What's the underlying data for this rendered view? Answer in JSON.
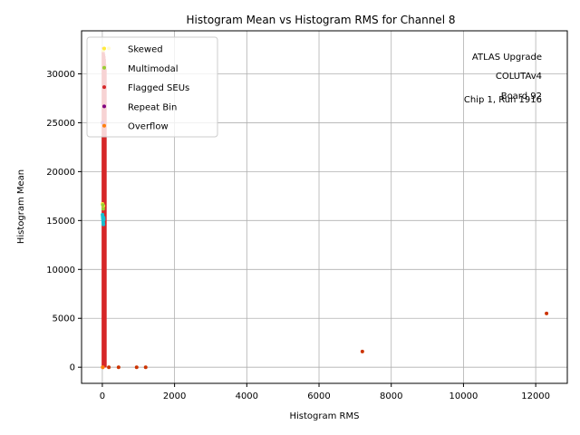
{
  "chart_data": {
    "type": "scatter",
    "title": "Histogram Mean vs Histogram RMS for Channel 8",
    "xlabel": "Histogram RMS",
    "ylabel": "Histogram Mean",
    "xlim": [
      -575,
      12875
    ],
    "ylim": [
      -1650,
      34400
    ],
    "xticks": [
      0,
      2000,
      4000,
      6000,
      8000,
      10000,
      12000
    ],
    "yticks": [
      0,
      5000,
      10000,
      15000,
      20000,
      25000,
      30000
    ],
    "grid": true,
    "legend_position": "top-left",
    "annotation": [
      "ATLAS Upgrade",
      "COLUTAv4",
      "Board 92",
      "Chip 1, Run 1916"
    ],
    "colors": {
      "normal": "#17becf",
      "skewed": "#ffeb3b",
      "multimodal": "#9acd32",
      "flagged": "#d62728",
      "repeat": "#800080",
      "overflow": "#ff7f0e",
      "extreme": "#cc3300"
    },
    "legend": [
      {
        "label": "Skewed",
        "color": "#ffeb3b"
      },
      {
        "label": "Multimodal",
        "color": "#9acd32"
      },
      {
        "label": "Flagged SEUs",
        "color": "#d62728"
      },
      {
        "label": "Repeat Bin",
        "color": "#800080"
      },
      {
        "label": "Overflow",
        "color": "#ff7f0e"
      }
    ],
    "series": [
      {
        "name": "Flagged SEUs",
        "color": "#d62728",
        "style": "bar",
        "points": [
          {
            "x": 0,
            "y": 32700
          },
          {
            "x": 10,
            "y": 32600
          },
          {
            "x": 20,
            "y": 32500
          },
          {
            "x": 30,
            "y": 32400
          },
          {
            "x": 40,
            "y": 32300
          },
          {
            "x": 50,
            "y": 32200
          },
          {
            "x": 60,
            "y": 32000
          },
          {
            "x": 70,
            "y": 31800
          },
          {
            "x": 80,
            "y": 31500
          },
          {
            "x": 90,
            "y": 31000
          },
          {
            "x": 100,
            "y": 30500
          }
        ]
      },
      {
        "name": "Skewed",
        "color": "#ffeb3b",
        "points": [
          {
            "x": 20,
            "y": 32400
          },
          {
            "x": 180,
            "y": 32600
          },
          {
            "x": 5,
            "y": 16700
          },
          {
            "x": 30,
            "y": 16500
          }
        ]
      },
      {
        "name": "Multimodal",
        "color": "#9acd32",
        "points": [
          {
            "x": 15,
            "y": 16600
          },
          {
            "x": 25,
            "y": 16200
          }
        ]
      },
      {
        "name": "Repeat Bin",
        "color": "#800080",
        "points": [
          {
            "x": 5,
            "y": 25000
          }
        ]
      },
      {
        "name": "Overflow",
        "color": "#ff7f0e",
        "points": [
          {
            "x": 10,
            "y": 0
          },
          {
            "x": 15,
            "y": 0
          }
        ]
      },
      {
        "name": "",
        "color": "#17becf",
        "points": [
          {
            "x": 5,
            "y": 15600
          },
          {
            "x": 10,
            "y": 15400
          },
          {
            "x": 15,
            "y": 15200
          },
          {
            "x": 20,
            "y": 15000
          },
          {
            "x": 25,
            "y": 14800
          },
          {
            "x": 30,
            "y": 14600
          },
          {
            "x": 35,
            "y": 15300
          },
          {
            "x": 40,
            "y": 15100
          }
        ]
      },
      {
        "name": "",
        "color": "#cc3300",
        "points": [
          {
            "x": 180,
            "y": 0
          },
          {
            "x": 450,
            "y": 0
          },
          {
            "x": 950,
            "y": 0
          },
          {
            "x": 1200,
            "y": 0
          },
          {
            "x": 7200,
            "y": 1600
          },
          {
            "x": 12300,
            "y": 5500
          }
        ]
      }
    ]
  }
}
